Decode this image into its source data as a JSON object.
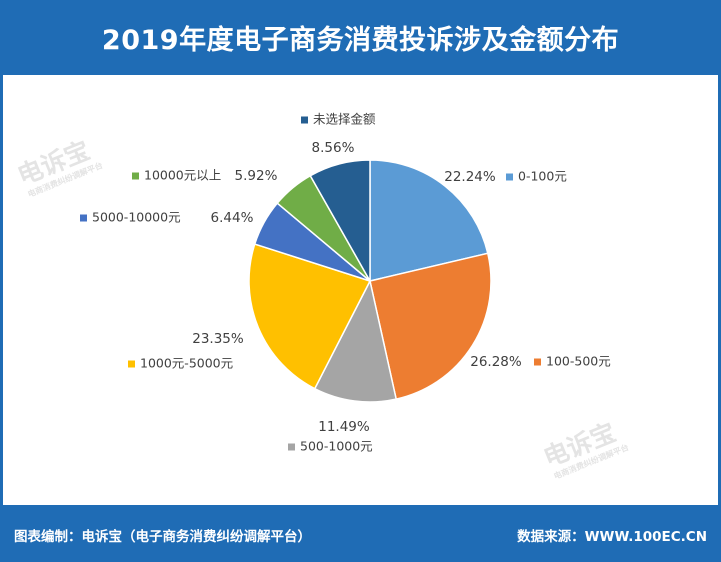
{
  "header": {
    "title": "2019年度电子商务消费投诉涉及金额分布"
  },
  "footer": {
    "left": "图表编制：电诉宝（电子商务消费纠纷调解平台）",
    "right": "数据来源：WWW.100EC.CN"
  },
  "watermark": {
    "brand": "电诉宝",
    "tagline": "电商消费纠纷调解平台"
  },
  "colors": {
    "header_bg": "#1f6cb5",
    "series": [
      "#5b9bd5",
      "#ed7d31",
      "#a5a5a5",
      "#ffc000",
      "#4472c4",
      "#70ad47",
      "#255e91"
    ]
  },
  "chart_data": {
    "type": "pie",
    "title": "2019年度电子商务消费投诉涉及金额分布",
    "start_angle_deg": 0,
    "direction": "clockwise",
    "legend": "labels-outside",
    "slices": [
      {
        "category": "0-100元",
        "value": 22.24,
        "label": "22.24%",
        "color": "#5b9bd5"
      },
      {
        "category": "100-500元",
        "value": 26.28,
        "label": "26.28%",
        "color": "#ed7d31"
      },
      {
        "category": "500-1000元",
        "value": 11.49,
        "label": "11.49%",
        "color": "#a5a5a5"
      },
      {
        "category": "1000元-5000元",
        "value": 23.35,
        "label": "23.35%",
        "color": "#ffc000"
      },
      {
        "category": "5000-10000元",
        "value": 6.44,
        "label": "6.44%",
        "color": "#4472c4"
      },
      {
        "category": "10000元以上",
        "value": 5.92,
        "label": "5.92%",
        "color": "#70ad47"
      },
      {
        "category": "未选择金额",
        "value": 8.56,
        "label": "8.56%",
        "color": "#255e91"
      }
    ]
  }
}
